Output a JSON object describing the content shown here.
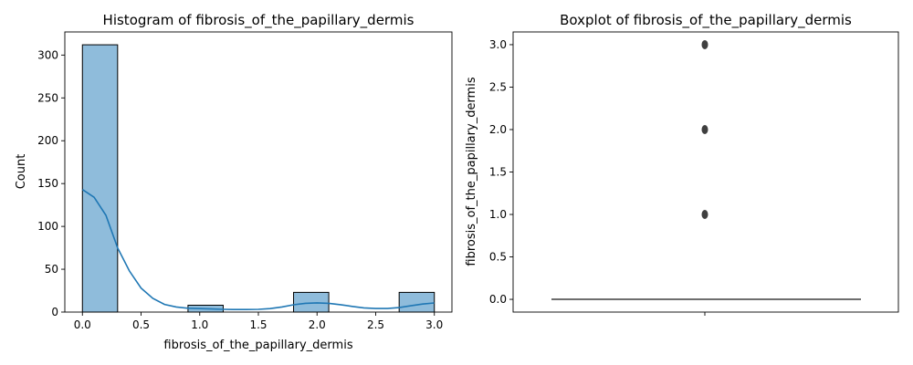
{
  "chart_data": [
    {
      "type": "bar",
      "title": "Histogram of fibrosis_of_the_papillary_dermis",
      "xlabel": "fibrosis_of_the_papillary_dermis",
      "ylabel": "Count",
      "xlim": [
        -0.15,
        3.15
      ],
      "ylim": [
        0,
        327
      ],
      "xticks": [
        0.0,
        0.5,
        1.0,
        1.5,
        2.0,
        2.5,
        3.0
      ],
      "xtick_labels": [
        "0.0",
        "0.5",
        "1.0",
        "1.5",
        "2.0",
        "2.5",
        "3.0"
      ],
      "yticks": [
        0,
        50,
        100,
        150,
        200,
        250,
        300
      ],
      "ytick_labels": [
        "0",
        "50",
        "100",
        "150",
        "200",
        "250",
        "300"
      ],
      "bars": [
        {
          "x0": 0.0,
          "x1": 0.3,
          "value": 312
        },
        {
          "x0": 0.9,
          "x1": 1.2,
          "value": 8
        },
        {
          "x0": 1.8,
          "x1": 2.1,
          "value": 23
        },
        {
          "x0": 2.7,
          "x1": 3.0,
          "value": 23
        }
      ],
      "kde": {
        "x": [
          0.0,
          0.1,
          0.2,
          0.3,
          0.4,
          0.5,
          0.6,
          0.7,
          0.8,
          0.9,
          1.0,
          1.1,
          1.2,
          1.3,
          1.4,
          1.5,
          1.6,
          1.7,
          1.8,
          1.9,
          2.0,
          2.1,
          2.2,
          2.3,
          2.4,
          2.5,
          2.6,
          2.7,
          2.8,
          2.9,
          3.0
        ],
        "y": [
          143,
          134,
          113,
          75,
          48,
          28,
          16,
          9,
          6,
          4.5,
          4,
          3.6,
          3.2,
          3,
          3,
          3.2,
          4,
          6,
          8.5,
          10.2,
          10.8,
          10.2,
          8.6,
          6.6,
          4.9,
          4.2,
          4.2,
          5.2,
          7.4,
          9.4,
          10.6
        ]
      },
      "colors": {
        "bar_fill": "#8fbcdb",
        "bar_edge": "#000000",
        "kde_line": "#1f77b4"
      }
    },
    {
      "type": "box",
      "title": "Boxplot of fibrosis_of_the_papillary_dermis",
      "xlabel": "",
      "ylabel": "fibrosis_of_the_papillary_dermis",
      "ylim": [
        -0.15,
        3.15
      ],
      "yticks": [
        0.0,
        0.5,
        1.0,
        1.5,
        2.0,
        2.5,
        3.0
      ],
      "ytick_labels": [
        "0.0",
        "0.5",
        "1.0",
        "1.5",
        "2.0",
        "2.5",
        "3.0"
      ],
      "box": {
        "q1": 0.0,
        "median": 0.0,
        "q3": 0.0,
        "whisker_low": 0.0,
        "whisker_high": 0.0
      },
      "outliers": [
        1.0,
        2.0,
        3.0
      ],
      "colors": {
        "box_line": "#3f3f3f",
        "outlier": "#3f3f3f"
      }
    }
  ]
}
